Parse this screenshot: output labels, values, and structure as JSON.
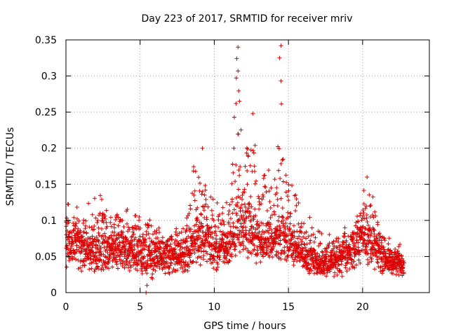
{
  "chart_data": {
    "type": "scatter",
    "title": "Day 223 of 2017, SRMTID for receiver mriv",
    "xlabel": "GPS time / hours",
    "ylabel": "SRMTID / TECUs",
    "xlim": [
      0,
      24.5
    ],
    "ylim": [
      0,
      0.35
    ],
    "xticks": [
      0,
      5,
      10,
      15,
      20
    ],
    "yticks": [
      0,
      0.05,
      0.1,
      0.15,
      0.2,
      0.25,
      0.3,
      0.35
    ],
    "xtick_labels": [
      "0",
      "5",
      "10",
      "15",
      "20"
    ],
    "ytick_labels": [
      "0",
      "0.05",
      "0.1",
      "0.15",
      "0.2",
      "0.25",
      "0.3",
      "0.35"
    ],
    "grid": true,
    "marker": "+",
    "marker_color": "#dd0000",
    "series": [
      {
        "name": "SRMTID",
        "x_range": [
          0,
          22.8
        ],
        "estimated_envelope": {
          "x": [
            0,
            1,
            2,
            3,
            4,
            5,
            5.5,
            6,
            7,
            8,
            8.5,
            9,
            9.5,
            10,
            11,
            11.5,
            12,
            12.5,
            13,
            14,
            14.5,
            15,
            16,
            17,
            18,
            19,
            19.5,
            20,
            20.5,
            21,
            22,
            22.8
          ],
          "y_median": [
            0.065,
            0.06,
            0.055,
            0.06,
            0.06,
            0.05,
            0.04,
            0.05,
            0.05,
            0.05,
            0.06,
            0.08,
            0.07,
            0.06,
            0.06,
            0.09,
            0.09,
            0.08,
            0.07,
            0.07,
            0.08,
            0.07,
            0.05,
            0.04,
            0.04,
            0.05,
            0.06,
            0.08,
            0.07,
            0.05,
            0.04,
            0.04
          ],
          "y_max": [
            0.125,
            0.12,
            0.135,
            0.14,
            0.12,
            0.11,
            0.13,
            0.09,
            0.09,
            0.1,
            0.17,
            0.2,
            0.14,
            0.13,
            0.13,
            0.34,
            0.25,
            0.25,
            0.16,
            0.18,
            0.34,
            0.16,
            0.12,
            0.09,
            0.09,
            0.1,
            0.11,
            0.14,
            0.16,
            0.1,
            0.08,
            0.06
          ],
          "y_min": [
            0.03,
            0.025,
            0.02,
            0.025,
            0.03,
            0.02,
            0.0,
            0.02,
            0.02,
            0.02,
            0.03,
            0.03,
            0.03,
            0.025,
            0.03,
            0.03,
            0.035,
            0.03,
            0.03,
            0.035,
            0.04,
            0.03,
            0.02,
            0.02,
            0.015,
            0.02,
            0.025,
            0.03,
            0.03,
            0.02,
            0.02,
            0.02
          ]
        },
        "notable_points": [
          {
            "x": 11.6,
            "y": 0.34
          },
          {
            "x": 11.6,
            "y": 0.307
          },
          {
            "x": 11.7,
            "y": 0.265
          },
          {
            "x": 12.6,
            "y": 0.248
          },
          {
            "x": 14.5,
            "y": 0.342
          },
          {
            "x": 14.4,
            "y": 0.325
          },
          {
            "x": 14.5,
            "y": 0.293
          },
          {
            "x": 9.2,
            "y": 0.2
          },
          {
            "x": 20.3,
            "y": 0.16
          },
          {
            "x": 5.4,
            "y": 0.0
          }
        ]
      }
    ]
  }
}
